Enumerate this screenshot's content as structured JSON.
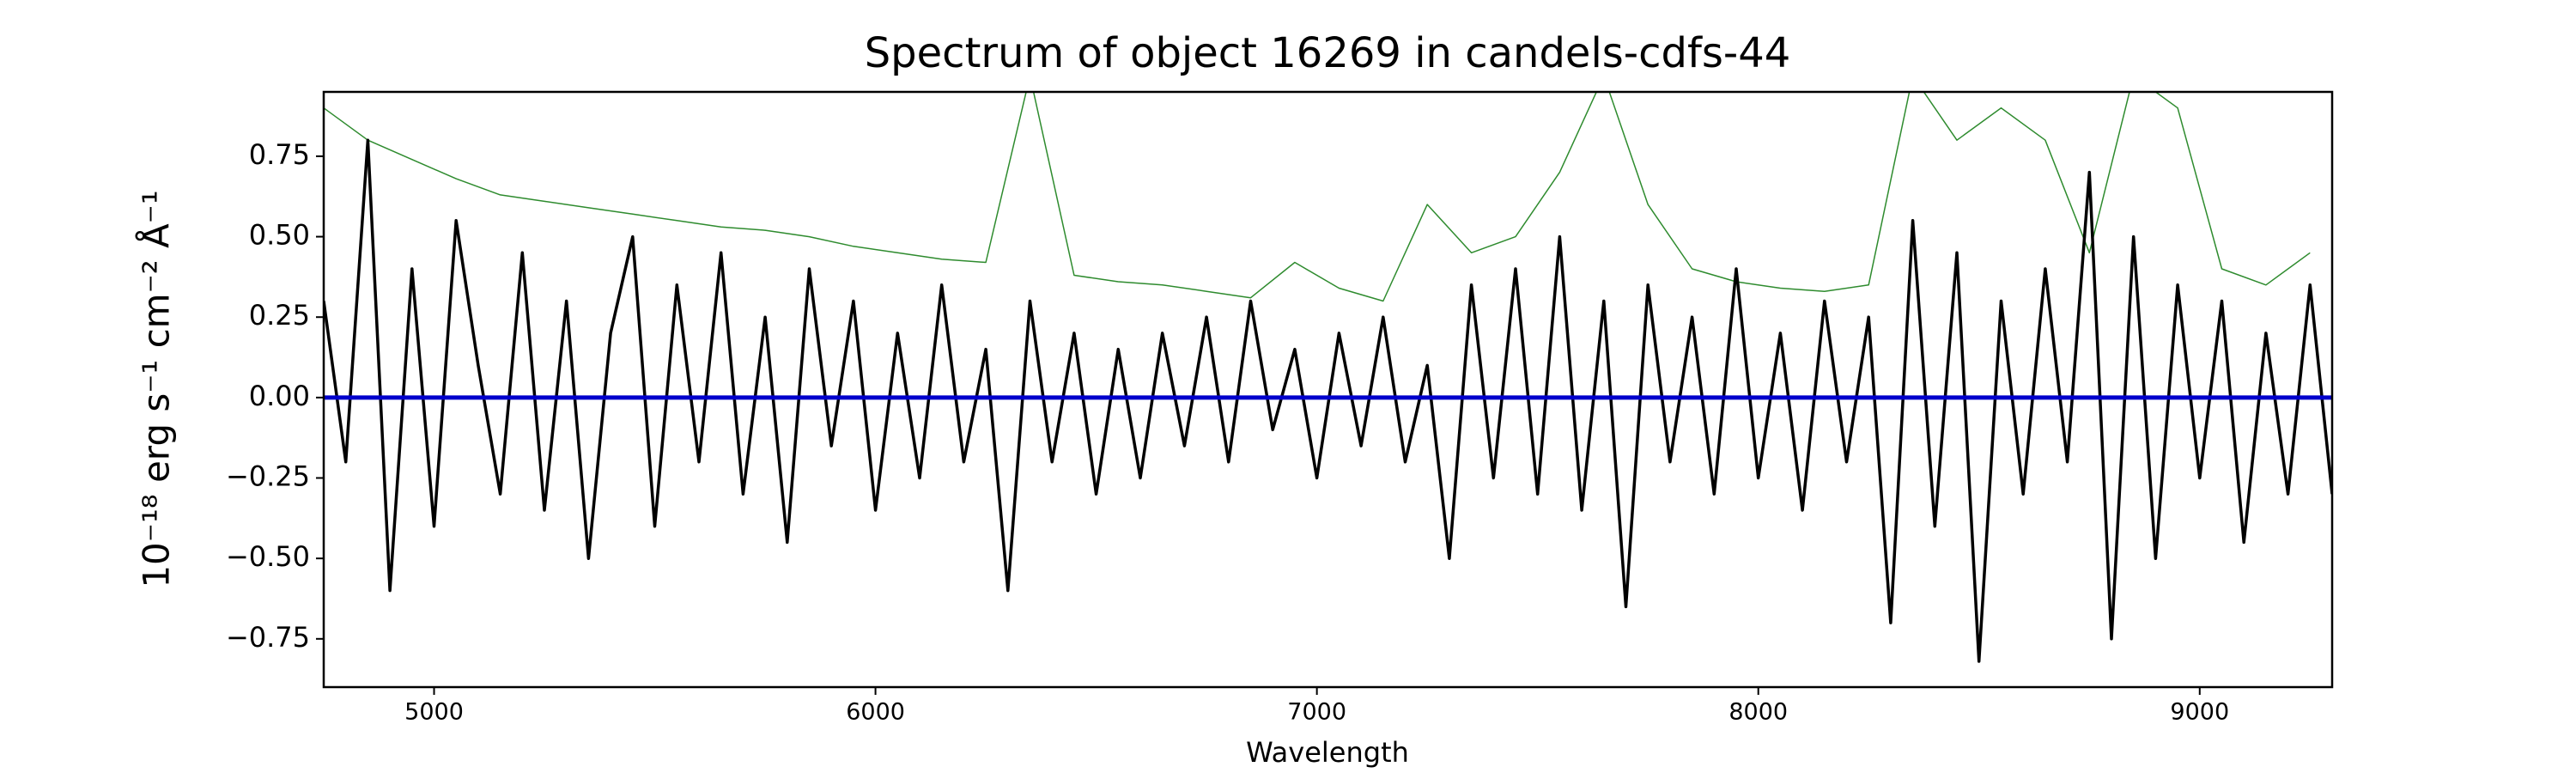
{
  "chart_data": {
    "type": "line",
    "title": "Spectrum of object 16269 in candels-cdfs-44",
    "x_label": "Wavelength",
    "y_label": "10⁻¹⁸ erg s⁻¹ cm⁻² Å⁻¹",
    "xlim": [
      4750,
      9300
    ],
    "ylim": [
      -0.9,
      0.95
    ],
    "xticks": [
      5000,
      6000,
      7000,
      8000,
      9000
    ],
    "yticks": [
      {
        "value": -0.75,
        "label": "−0.75"
      },
      {
        "value": -0.5,
        "label": "−0.50"
      },
      {
        "value": -0.25,
        "label": "−0.25"
      },
      {
        "value": 0,
        "label": "0.00"
      },
      0.25,
      {
        "value": 0.5,
        "label": "0.50"
      },
      0.75
    ],
    "series": [
      {
        "color": "#2e8b2e",
        "width": 1.5,
        "x": [
          4750,
          4850,
          4950,
          5050,
          5150,
          5250,
          5350,
          5450,
          5550,
          5650,
          5750,
          5850,
          5950,
          6050,
          6150,
          6250,
          6350,
          6450,
          6550,
          6650,
          6750,
          6850,
          6950,
          7050,
          7150,
          7250,
          7350,
          7450,
          7550,
          7650,
          7750,
          7850,
          7950,
          8050,
          8150,
          8250,
          8350,
          8450,
          8550,
          8650,
          8750,
          8850,
          8950,
          9050,
          9150,
          9250
        ],
        "values": [
          0.9,
          0.8,
          0.74,
          0.68,
          0.63,
          0.61,
          0.59,
          0.57,
          0.55,
          0.53,
          0.52,
          0.5,
          0.47,
          0.45,
          0.43,
          0.42,
          1.0,
          0.38,
          0.36,
          0.35,
          0.33,
          0.31,
          0.42,
          0.34,
          0.3,
          0.6,
          0.45,
          0.5,
          0.7,
          1.0,
          0.6,
          0.4,
          0.36,
          0.34,
          0.33,
          0.35,
          1.0,
          0.8,
          0.9,
          0.8,
          0.45,
          1.0,
          0.9,
          0.4,
          0.35,
          0.45
        ]
      },
      {
        "color": "#000000",
        "width": 3.5,
        "x": [
          4750,
          4800,
          4850,
          4900,
          4950,
          5000,
          5050,
          5100,
          5150,
          5200,
          5250,
          5300,
          5350,
          5400,
          5450,
          5500,
          5550,
          5600,
          5650,
          5700,
          5750,
          5800,
          5850,
          5900,
          5950,
          6000,
          6050,
          6100,
          6150,
          6200,
          6250,
          6300,
          6350,
          6400,
          6450,
          6500,
          6550,
          6600,
          6650,
          6700,
          6750,
          6800,
          6850,
          6900,
          6950,
          7000,
          7050,
          7100,
          7150,
          7200,
          7250,
          7300,
          7350,
          7400,
          7450,
          7500,
          7550,
          7600,
          7650,
          7700,
          7750,
          7800,
          7850,
          7900,
          7950,
          8000,
          8050,
          8100,
          8150,
          8200,
          8250,
          8300,
          8350,
          8400,
          8450,
          8500,
          8550,
          8600,
          8650,
          8700,
          8750,
          8800,
          8850,
          8900,
          8950,
          9000,
          9050,
          9100,
          9150,
          9200,
          9250,
          9300
        ],
        "values": [
          0.3,
          -0.2,
          0.8,
          -0.6,
          0.4,
          -0.4,
          0.55,
          0.1,
          -0.3,
          0.45,
          -0.35,
          0.3,
          -0.5,
          0.2,
          0.5,
          -0.4,
          0.35,
          -0.2,
          0.45,
          -0.3,
          0.25,
          -0.45,
          0.4,
          -0.15,
          0.3,
          -0.35,
          0.2,
          -0.25,
          0.35,
          -0.2,
          0.15,
          -0.6,
          0.3,
          -0.2,
          0.2,
          -0.3,
          0.15,
          -0.25,
          0.2,
          -0.15,
          0.25,
          -0.2,
          0.3,
          -0.1,
          0.15,
          -0.25,
          0.2,
          -0.15,
          0.25,
          -0.2,
          0.1,
          -0.5,
          0.35,
          -0.25,
          0.4,
          -0.3,
          0.5,
          -0.35,
          0.3,
          -0.65,
          0.35,
          -0.2,
          0.25,
          -0.3,
          0.4,
          -0.25,
          0.2,
          -0.35,
          0.3,
          -0.2,
          0.25,
          -0.7,
          0.55,
          -0.4,
          0.45,
          -0.82,
          0.3,
          -0.3,
          0.4,
          -0.2,
          0.7,
          -0.75,
          0.5,
          -0.5,
          0.35,
          -0.25,
          0.3,
          -0.45,
          0.2,
          -0.3,
          0.35,
          -0.3
        ]
      },
      {
        "color": "#0000cc",
        "width": 5,
        "x": [
          4750,
          9300
        ],
        "values": [
          0,
          0
        ]
      }
    ]
  }
}
